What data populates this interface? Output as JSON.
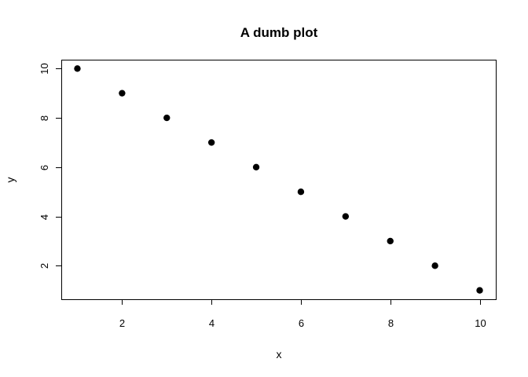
{
  "chart_data": {
    "type": "scatter",
    "title": "A dumb plot",
    "xlabel": "x",
    "ylabel": "y",
    "x": [
      1,
      2,
      3,
      4,
      5,
      6,
      7,
      8,
      9,
      10
    ],
    "y": [
      10,
      9,
      8,
      7,
      6,
      5,
      4,
      3,
      2,
      1
    ],
    "xticks": [
      2,
      4,
      6,
      8,
      10
    ],
    "yticks": [
      2,
      4,
      6,
      8,
      10
    ],
    "xlim": [
      0.64,
      10.36
    ],
    "ylim": [
      0.64,
      10.36
    ],
    "grid": false,
    "marker": "filled-circle",
    "marker_color": "#000000"
  }
}
